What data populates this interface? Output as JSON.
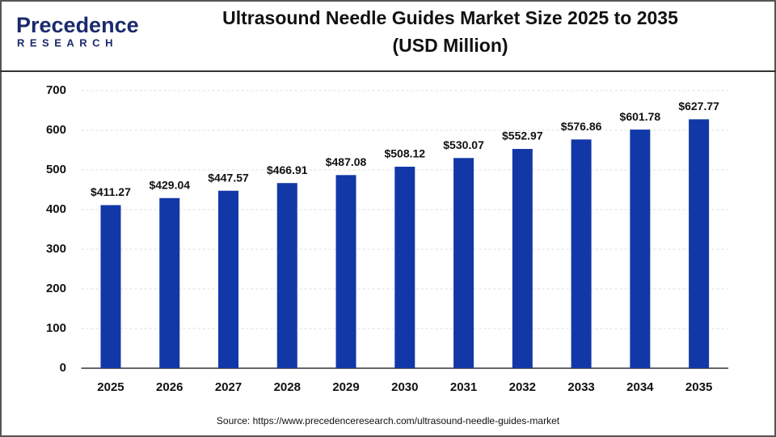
{
  "logo": {
    "name": "Precedence",
    "sub": "RESEARCH"
  },
  "chart_data": {
    "type": "bar",
    "title": "Ultrasound Needle Guides Market Size 2025 to 2035",
    "subtitle": "(USD Million)",
    "categories": [
      "2025",
      "2026",
      "2027",
      "2028",
      "2029",
      "2030",
      "2031",
      "2032",
      "2033",
      "2034",
      "2035"
    ],
    "values": [
      411.27,
      429.04,
      447.57,
      466.91,
      487.08,
      508.12,
      530.07,
      552.97,
      576.86,
      601.78,
      627.77
    ],
    "value_labels": [
      "$411.27",
      "$429.04",
      "$447.57",
      "$466.91",
      "$487.08",
      "$508.12",
      "$530.07",
      "$552.97",
      "$576.86",
      "$601.78",
      "$627.77"
    ],
    "color": "#1238a8",
    "ylim": [
      0,
      700
    ],
    "yticks": [
      0,
      100,
      200,
      300,
      400,
      500,
      600,
      700
    ],
    "grid": true,
    "source": "Source: https://www.precedenceresearch.com/ultrasound-needle-guides-market"
  }
}
